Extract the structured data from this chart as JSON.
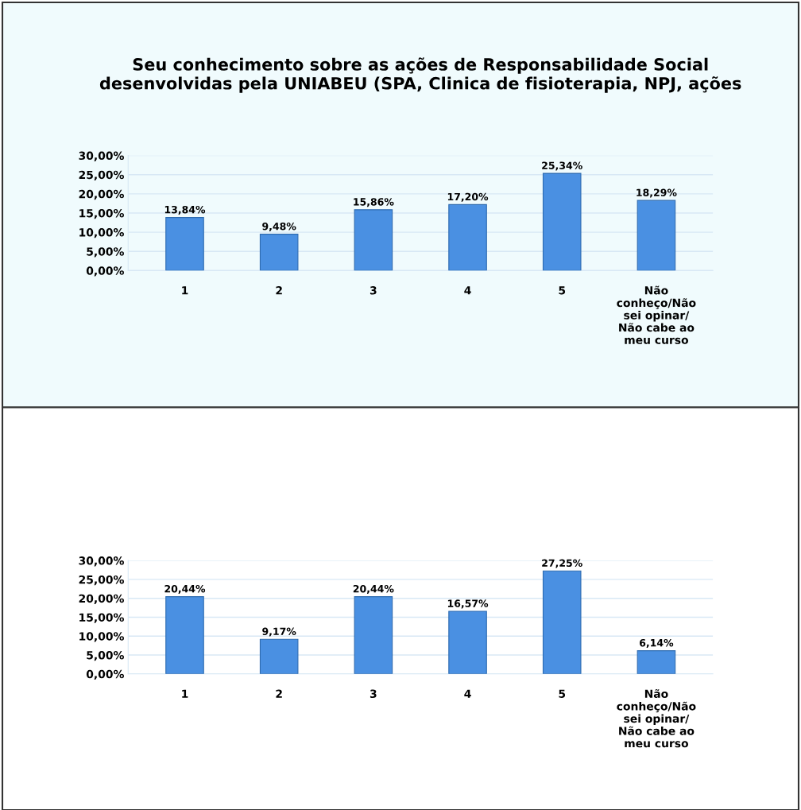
{
  "chart_data": [
    {
      "type": "bar",
      "title": "Seu conhecimento sobre as ações de Responsabilidade Social\ndesenvolvidas pela UNIABEU (SPA, Clinica de fisioterapia, NPJ, ações",
      "categories": [
        "1",
        "2",
        "3",
        "4",
        "5",
        "Não\nconheço/Não\nsei opinar/\nNão cabe ao\nmeu curso"
      ],
      "values": [
        13.84,
        9.48,
        15.86,
        17.2,
        25.34,
        18.29
      ],
      "value_labels": [
        "13,84%",
        "9,48%",
        "15,86%",
        "17,20%",
        "25,34%",
        "18,29%"
      ],
      "color": "#4a90e2",
      "ylim": [
        0,
        30
      ],
      "yticks": [
        {
          "value": 0,
          "label": "0,00%"
        },
        {
          "value": 5,
          "label": "5,00%"
        },
        {
          "value": 10,
          "label": "10,00%"
        },
        {
          "value": 15,
          "label": "15,00%"
        },
        {
          "value": 20,
          "label": "20,00%"
        },
        {
          "value": 25,
          "label": "25,00%"
        },
        {
          "value": 30,
          "label": "30,00%"
        }
      ],
      "grid": "y"
    },
    {
      "type": "bar",
      "categories": [
        "1",
        "2",
        "3",
        "4",
        "5",
        "Não\nconheço/Não\nsei opinar/\nNão cabe ao\nmeu curso"
      ],
      "values": [
        20.44,
        9.17,
        20.44,
        16.57,
        27.25,
        6.14
      ],
      "value_labels": [
        "20,44%",
        "9,17%",
        "20,44%",
        "16,57%",
        "27,25%",
        "6,14%"
      ],
      "color": "#4a90e2",
      "ylim": [
        0,
        30
      ],
      "yticks": [
        {
          "value": 0,
          "label": "0,00%"
        },
        {
          "value": 5,
          "label": "5,00%"
        },
        {
          "value": 10,
          "label": "10,00%"
        },
        {
          "value": 15,
          "label": "15,00%"
        },
        {
          "value": 20,
          "label": "20,00%"
        },
        {
          "value": 25,
          "label": "25,00%"
        },
        {
          "value": 30,
          "label": "30,00%"
        }
      ],
      "grid": "y"
    }
  ]
}
